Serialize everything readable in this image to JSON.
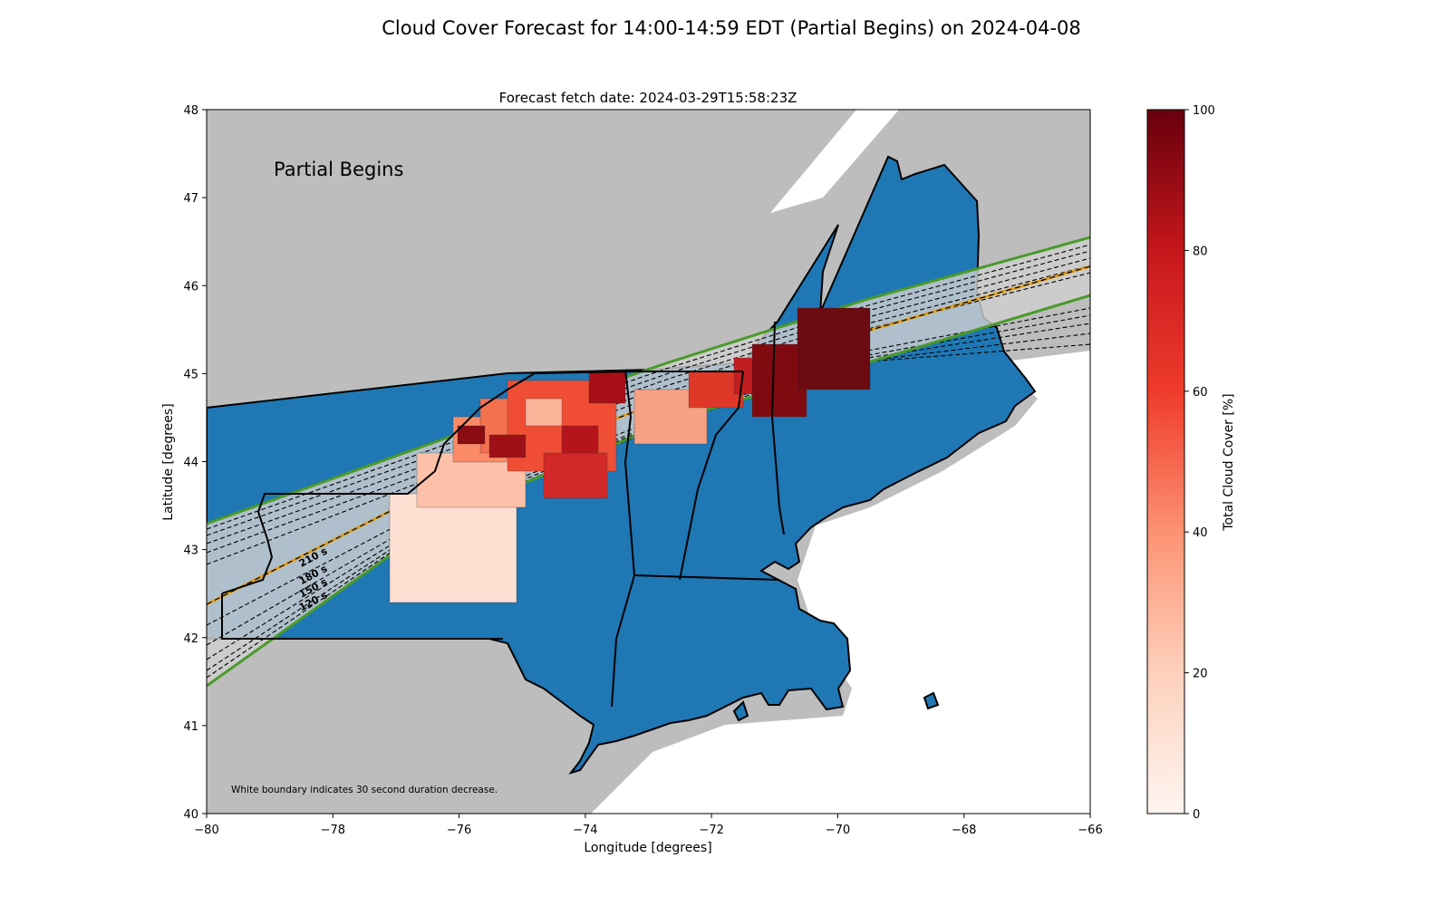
{
  "figure": {
    "title": "Cloud Cover Forecast for 14:00-14:59 EDT (Partial Begins) on 2024-04-08",
    "subtitle": "Forecast fetch date: 2024-03-29T15:58:23Z",
    "phase_label": "Partial Begins",
    "footnote": "White boundary indicates 30 second duration decrease."
  },
  "map": {
    "xlabel": "Longitude [degrees]",
    "ylabel": "Latitude [degrees]",
    "xlim": [
      -80,
      -66
    ],
    "ylim": [
      40,
      48
    ],
    "xticks": [
      {
        "value": -80,
        "label": "−80"
      },
      {
        "value": -78,
        "label": "−78"
      },
      {
        "value": -76,
        "label": "−76"
      },
      {
        "value": -74,
        "label": "−74"
      },
      {
        "value": -72,
        "label": "−72"
      },
      {
        "value": -70,
        "label": "−70"
      },
      {
        "value": -68,
        "label": "−68"
      },
      {
        "value": -66,
        "label": "−66"
      }
    ],
    "yticks": [
      {
        "value": 40,
        "label": "40"
      },
      {
        "value": 41,
        "label": "41"
      },
      {
        "value": 42,
        "label": "42"
      },
      {
        "value": 43,
        "label": "43"
      },
      {
        "value": 44,
        "label": "44"
      },
      {
        "value": 45,
        "label": "45"
      },
      {
        "value": 46,
        "label": "46"
      },
      {
        "value": 47,
        "label": "47"
      },
      {
        "value": 48,
        "label": "48"
      }
    ],
    "colors": {
      "background_gray": "#bdbdbd",
      "land": "#1f77b4",
      "path_band": "#d0d0d0",
      "centerline": "#e0a020",
      "path_edge": "#4a9a2a"
    },
    "duration_labels": [
      {
        "text": "210 s",
        "lon": -78.5,
        "lat": 42.8
      },
      {
        "text": "180 s",
        "lon": -78.5,
        "lat": 42.6
      },
      {
        "text": "150 s",
        "lon": -78.5,
        "lat": 42.45
      },
      {
        "text": "120 s",
        "lon": -78.5,
        "lat": 42.3
      }
    ]
  },
  "colorbar": {
    "label": "Total Cloud Cover [%]",
    "range": [
      0,
      100
    ],
    "ticks": [
      {
        "value": 0,
        "label": "0"
      },
      {
        "value": 20,
        "label": "20"
      },
      {
        "value": 40,
        "label": "40"
      },
      {
        "value": 60,
        "label": "60"
      },
      {
        "value": 80,
        "label": "80"
      },
      {
        "value": 100,
        "label": "100"
      }
    ],
    "colors": [
      "#fff5f0",
      "#fdbea5",
      "#fc7050",
      "#d42020",
      "#67000d"
    ]
  }
}
